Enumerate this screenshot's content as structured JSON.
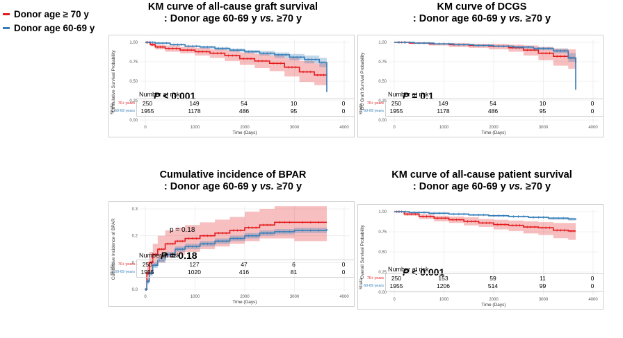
{
  "legend": {
    "items": [
      {
        "label": "Donor age ≥ 70 y",
        "color": "#e41a1c"
      },
      {
        "label": "Donor age 60-69 y",
        "color": "#377eb8"
      }
    ]
  },
  "risk": {
    "title": "Number at risk",
    "strata_label": "Strata",
    "group_labels": [
      "70+ years",
      "60-69 years"
    ]
  },
  "chart_data": [
    {
      "type": "line",
      "title_line1": "KM curve of all-cause graft survival",
      "title_line2_prefix": ": Donor age 60-69 y ",
      "title_line2_vs": "vs.",
      "title_line2_suffix": " ≥70 y",
      "xlabel": "Time (Days)",
      "ylabel": "Cumulative Survival Probability",
      "xlim": [
        0,
        4000
      ],
      "ylim": [
        0,
        1
      ],
      "xticks": [
        0,
        1000,
        2000,
        3000,
        4000
      ],
      "yticks": [
        "0.00",
        "0.25",
        "0.50",
        "0.75",
        "1.00"
      ],
      "p_label": "P",
      "p_value": " < 0.001",
      "series": [
        {
          "color": "#e41a1c",
          "x": [
            0,
            100,
            200,
            400,
            700,
            1000,
            1300,
            1600,
            1900,
            2200,
            2500,
            2800,
            3100,
            3400,
            3650
          ],
          "y": [
            1.0,
            0.97,
            0.94,
            0.92,
            0.9,
            0.88,
            0.86,
            0.83,
            0.79,
            0.76,
            0.73,
            0.68,
            0.62,
            0.58,
            0.57
          ],
          "lo": [
            1.0,
            0.95,
            0.91,
            0.88,
            0.86,
            0.83,
            0.8,
            0.76,
            0.71,
            0.67,
            0.63,
            0.56,
            0.49,
            0.45,
            0.43
          ],
          "hi": [
            1.0,
            0.99,
            0.97,
            0.96,
            0.94,
            0.93,
            0.91,
            0.9,
            0.87,
            0.85,
            0.83,
            0.8,
            0.76,
            0.73,
            0.72
          ]
        },
        {
          "color": "#377eb8",
          "x": [
            0,
            200,
            500,
            800,
            1100,
            1400,
            1700,
            2000,
            2300,
            2600,
            2900,
            3200,
            3500,
            3650
          ],
          "y": [
            1.0,
            0.99,
            0.97,
            0.95,
            0.94,
            0.92,
            0.9,
            0.88,
            0.86,
            0.84,
            0.81,
            0.78,
            0.74,
            0.36
          ],
          "lo": [
            1.0,
            0.98,
            0.96,
            0.94,
            0.92,
            0.9,
            0.88,
            0.86,
            0.83,
            0.8,
            0.77,
            0.73,
            0.68,
            0.68
          ],
          "hi": [
            1.0,
            1.0,
            0.98,
            0.96,
            0.95,
            0.94,
            0.92,
            0.9,
            0.89,
            0.87,
            0.85,
            0.83,
            0.8,
            0.8
          ]
        }
      ],
      "risk_times": [
        0,
        1000,
        2000,
        3000,
        4000
      ],
      "risk_rows": [
        [
          250,
          149,
          54,
          10,
          0
        ],
        [
          1955,
          1178,
          486,
          95,
          0
        ]
      ]
    },
    {
      "type": "line",
      "title_line1": "KM curve of DCGS",
      "title_line2_prefix": ": Donor age 60-69 y ",
      "title_line2_vs": "vs.",
      "title_line2_suffix": " ≥70 y",
      "xlabel": "Time (Days)",
      "ylabel": "DC Graft Survival Probability",
      "xlim": [
        0,
        4000
      ],
      "ylim": [
        0,
        1
      ],
      "xticks": [
        0,
        1000,
        2000,
        3000,
        4000
      ],
      "yticks": [
        "0.00",
        "0.25",
        "0.50",
        "0.75",
        "1.00"
      ],
      "p_label": "P",
      "p_value": " = 0.1",
      "series": [
        {
          "color": "#e41a1c",
          "x": [
            0,
            300,
            700,
            1100,
            1500,
            1900,
            2300,
            2600,
            2900,
            3200,
            3500,
            3650
          ],
          "y": [
            1.0,
            0.99,
            0.98,
            0.97,
            0.96,
            0.95,
            0.93,
            0.9,
            0.86,
            0.82,
            0.8,
            0.73
          ],
          "lo": [
            1.0,
            0.98,
            0.96,
            0.94,
            0.93,
            0.91,
            0.88,
            0.83,
            0.77,
            0.7,
            0.66,
            0.58
          ],
          "hi": [
            1.0,
            1.0,
            0.99,
            0.99,
            0.98,
            0.98,
            0.97,
            0.96,
            0.94,
            0.92,
            0.91,
            0.91
          ]
        },
        {
          "color": "#377eb8",
          "x": [
            0,
            400,
            800,
            1200,
            1600,
            2000,
            2400,
            2800,
            3200,
            3500,
            3650
          ],
          "y": [
            1.0,
            0.99,
            0.98,
            0.97,
            0.96,
            0.95,
            0.94,
            0.92,
            0.89,
            0.8,
            0.39
          ],
          "lo": [
            1.0,
            0.99,
            0.97,
            0.96,
            0.95,
            0.94,
            0.92,
            0.9,
            0.86,
            0.75,
            0.75
          ],
          "hi": [
            1.0,
            1.0,
            0.99,
            0.98,
            0.97,
            0.96,
            0.95,
            0.94,
            0.92,
            0.86,
            0.86
          ]
        }
      ],
      "risk_times": [
        0,
        1000,
        2000,
        3000,
        4000
      ],
      "risk_rows": [
        [
          250,
          149,
          54,
          10,
          0
        ],
        [
          1955,
          1178,
          486,
          95,
          0
        ]
      ]
    },
    {
      "type": "line",
      "title_line1": "Cumulative incidence of BPAR",
      "title_line2_prefix": ": Donor age 60-69 y ",
      "title_line2_vs": "vs.",
      "title_line2_suffix": " ≥70 y",
      "xlabel": "Time (Days)",
      "ylabel": "Cumulative Incidence of BPAR",
      "xlim": [
        0,
        4000
      ],
      "ylim": [
        0,
        0.3
      ],
      "xticks": [
        0,
        1000,
        2000,
        3000,
        4000
      ],
      "yticks": [
        "0.0",
        "0.1",
        "0.2",
        "0.3"
      ],
      "p_label": "P",
      "p_value": " = 0.18",
      "p_small": "p = 0.18",
      "series": [
        {
          "color": "#e41a1c",
          "x": [
            0,
            30,
            80,
            150,
            250,
            400,
            600,
            800,
            1100,
            1400,
            1700,
            2000,
            2300,
            2600,
            3000,
            3650
          ],
          "y": [
            0,
            0.06,
            0.1,
            0.13,
            0.15,
            0.17,
            0.18,
            0.19,
            0.2,
            0.21,
            0.22,
            0.23,
            0.24,
            0.25,
            0.25,
            0.25
          ],
          "lo": [
            0,
            0.03,
            0.06,
            0.09,
            0.1,
            0.12,
            0.13,
            0.14,
            0.15,
            0.16,
            0.17,
            0.18,
            0.19,
            0.19,
            0.18,
            0.18
          ],
          "hi": [
            0,
            0.1,
            0.14,
            0.17,
            0.2,
            0.22,
            0.23,
            0.24,
            0.25,
            0.26,
            0.27,
            0.29,
            0.3,
            0.31,
            0.31,
            0.31
          ]
        },
        {
          "color": "#377eb8",
          "x": [
            0,
            30,
            80,
            150,
            250,
            400,
            600,
            800,
            1100,
            1400,
            1700,
            2000,
            2300,
            2600,
            3000,
            3650
          ],
          "y": [
            0,
            0.03,
            0.06,
            0.09,
            0.11,
            0.13,
            0.15,
            0.16,
            0.17,
            0.18,
            0.19,
            0.2,
            0.21,
            0.215,
            0.22,
            0.225
          ],
          "lo": [
            0,
            0.02,
            0.05,
            0.08,
            0.1,
            0.12,
            0.14,
            0.15,
            0.16,
            0.17,
            0.18,
            0.19,
            0.2,
            0.205,
            0.21,
            0.215
          ],
          "hi": [
            0,
            0.04,
            0.07,
            0.1,
            0.12,
            0.14,
            0.16,
            0.17,
            0.18,
            0.19,
            0.2,
            0.21,
            0.22,
            0.225,
            0.23,
            0.235
          ]
        }
      ],
      "risk_times": [
        0,
        1000,
        2000,
        3000,
        4000
      ],
      "risk_rows": [
        [
          250,
          127,
          47,
          6,
          0
        ],
        [
          1955,
          1020,
          416,
          81,
          0
        ]
      ]
    },
    {
      "type": "line",
      "title_line1": "KM curve of all-cause patient survival",
      "title_line2_prefix": ": Donor age 60-69 y ",
      "title_line2_vs": "vs.",
      "title_line2_suffix": " ≥70 y",
      "xlabel": "Time (Days)",
      "ylabel": "Overall Survival Probability",
      "xlim": [
        0,
        4000
      ],
      "ylim": [
        0,
        1
      ],
      "xticks": [
        0,
        1000,
        2000,
        3000,
        4000
      ],
      "yticks": [
        "0.00",
        "0.25",
        "0.50",
        "0.75",
        "1.00"
      ],
      "p_label": "P",
      "p_value": " < 0.001",
      "series": [
        {
          "color": "#e41a1c",
          "x": [
            0,
            200,
            500,
            800,
            1100,
            1400,
            1700,
            2000,
            2300,
            2600,
            2900,
            3200,
            3500,
            3650
          ],
          "y": [
            1.0,
            0.97,
            0.94,
            0.92,
            0.9,
            0.88,
            0.86,
            0.84,
            0.83,
            0.81,
            0.8,
            0.77,
            0.76,
            0.76
          ],
          "lo": [
            1.0,
            0.95,
            0.91,
            0.88,
            0.86,
            0.83,
            0.81,
            0.78,
            0.76,
            0.73,
            0.71,
            0.67,
            0.65,
            0.65
          ],
          "hi": [
            1.0,
            0.99,
            0.97,
            0.95,
            0.94,
            0.93,
            0.91,
            0.9,
            0.89,
            0.88,
            0.87,
            0.86,
            0.86,
            0.86
          ]
        },
        {
          "color": "#377eb8",
          "x": [
            0,
            300,
            700,
            1100,
            1500,
            1900,
            2300,
            2700,
            3100,
            3500,
            3650
          ],
          "y": [
            1.0,
            0.99,
            0.98,
            0.97,
            0.96,
            0.95,
            0.94,
            0.93,
            0.92,
            0.91,
            0.9
          ],
          "lo": [
            1.0,
            0.98,
            0.97,
            0.96,
            0.95,
            0.94,
            0.93,
            0.92,
            0.9,
            0.89,
            0.88
          ],
          "hi": [
            1.0,
            1.0,
            0.99,
            0.98,
            0.97,
            0.96,
            0.95,
            0.94,
            0.93,
            0.92,
            0.92
          ]
        }
      ],
      "risk_times": [
        0,
        1000,
        2000,
        3000,
        4000
      ],
      "risk_rows": [
        [
          250,
          153,
          59,
          11,
          0
        ],
        [
          1955,
          1206,
          514,
          99,
          0
        ]
      ]
    }
  ]
}
